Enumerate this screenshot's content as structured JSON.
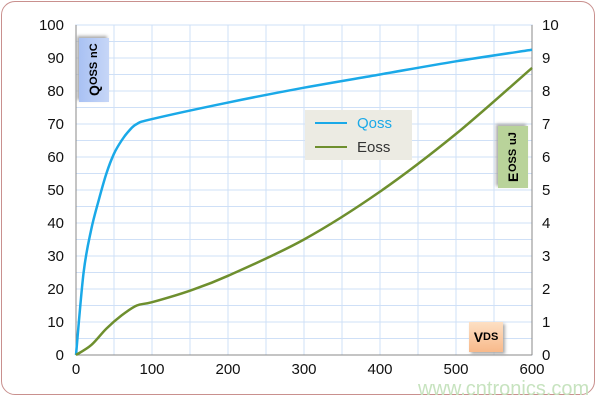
{
  "chart_data": {
    "type": "line",
    "xlim": [
      0,
      600
    ],
    "ylim_left": [
      0,
      100
    ],
    "ylim_right": [
      0,
      10
    ],
    "x_ticks": [
      "0",
      "100",
      "200",
      "300",
      "400",
      "500",
      "600"
    ],
    "y_left_ticks": [
      "0",
      "10",
      "20",
      "30",
      "40",
      "50",
      "60",
      "70",
      "80",
      "90",
      "100"
    ],
    "y_right_ticks": [
      "0",
      "1",
      "2",
      "3",
      "4",
      "5",
      "6",
      "7",
      "8",
      "9",
      "10"
    ],
    "grid": true,
    "xlabel": {
      "main": "V",
      "sub": "DS"
    },
    "ylabel_left": {
      "main": "Q",
      "sub": "OSS",
      "unit": "nC"
    },
    "ylabel_right": {
      "main": "E",
      "sub": "OSS",
      "unit": "uJ"
    },
    "legend_position": "center",
    "series": [
      {
        "name": "Qoss",
        "axis": "left",
        "color": "#1aa9e8",
        "x": [
          0,
          10,
          20,
          30,
          40,
          50,
          60,
          70,
          80,
          100,
          200,
          300,
          400,
          500,
          600
        ],
        "y": [
          0,
          25,
          38,
          47,
          55,
          61,
          65,
          68,
          70,
          71.5,
          76.5,
          81,
          85,
          89,
          92.5
        ]
      },
      {
        "name": "Eoss",
        "axis": "right",
        "color": "#6e8f2e",
        "x": [
          0,
          20,
          40,
          60,
          80,
          100,
          150,
          200,
          300,
          400,
          500,
          600
        ],
        "y": [
          0,
          0.3,
          0.8,
          1.2,
          1.5,
          1.6,
          1.95,
          2.4,
          3.5,
          4.95,
          6.7,
          8.7
        ]
      }
    ]
  },
  "watermark": "www.cntronics.com"
}
